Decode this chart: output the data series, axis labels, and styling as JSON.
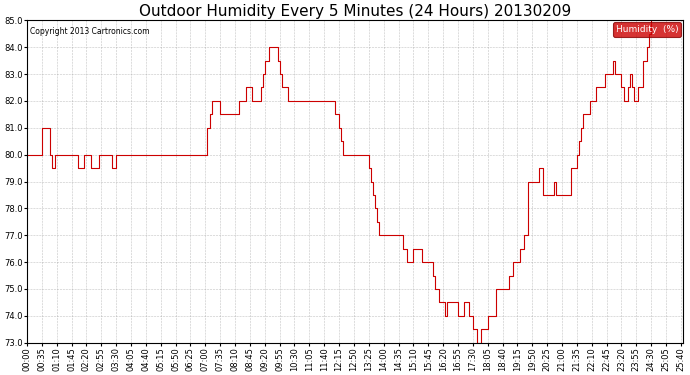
{
  "title": "Outdoor Humidity Every 5 Minutes (24 Hours) 20130209",
  "copyright": "Copyright 2013 Cartronics.com",
  "legend_label": "Humidity  (%)",
  "ylim": [
    73.0,
    85.0
  ],
  "yticks": [
    73.0,
    74.0,
    75.0,
    76.0,
    77.0,
    78.0,
    79.0,
    80.0,
    81.0,
    82.0,
    83.0,
    84.0,
    85.0
  ],
  "line_color": "#cc0000",
  "background_color": "#ffffff",
  "grid_color": "#999999",
  "title_fontsize": 11,
  "tick_fontsize": 6,
  "figsize": [
    6.9,
    3.75
  ],
  "dpi": 100,
  "humidity_data": [
    80.0,
    80.0,
    80.0,
    80.0,
    80.0,
    80.0,
    80.0,
    81.0,
    81.0,
    81.0,
    81.0,
    80.0,
    79.5,
    80.0,
    80.0,
    80.0,
    80.0,
    80.0,
    80.0,
    80.0,
    80.0,
    80.0,
    80.0,
    80.0,
    79.5,
    79.5,
    79.5,
    80.0,
    80.0,
    80.0,
    79.5,
    79.5,
    79.5,
    79.5,
    80.0,
    80.0,
    80.0,
    80.0,
    80.0,
    80.0,
    79.5,
    79.5,
    80.0,
    80.0,
    80.0,
    80.0,
    80.0,
    80.0,
    80.0,
    80.0,
    80.0,
    80.0,
    80.0,
    80.0,
    80.0,
    80.0,
    80.0,
    80.0,
    80.0,
    80.0,
    80.0,
    80.0,
    80.0,
    80.0,
    80.0,
    80.0,
    80.0,
    80.0,
    80.0,
    80.0,
    80.0,
    80.0,
    80.0,
    80.0,
    80.0,
    80.0,
    80.0,
    80.0,
    80.0,
    80.0,
    80.0,
    80.0,
    80.0,
    80.0,
    80.0,
    81.0,
    81.5,
    82.0,
    82.0,
    82.0,
    82.0,
    81.5,
    81.5,
    81.5,
    81.5,
    81.5,
    81.5,
    81.5,
    81.5,
    81.5,
    82.0,
    82.0,
    82.0,
    82.5,
    82.5,
    82.5,
    82.0,
    82.0,
    82.0,
    82.0,
    82.5,
    83.0,
    83.5,
    83.5,
    84.0,
    84.0,
    84.0,
    84.0,
    83.5,
    83.0,
    82.5,
    82.5,
    82.5,
    82.0,
    82.0,
    82.0,
    82.0,
    82.0,
    82.0,
    82.0,
    82.0,
    82.0,
    82.0,
    82.0,
    82.0,
    82.0,
    82.0,
    82.0,
    82.0,
    82.0,
    82.0,
    82.0,
    82.0,
    82.0,
    82.0,
    81.5,
    81.5,
    81.0,
    80.5,
    80.0,
    80.0,
    80.0,
    80.0,
    80.0,
    80.0,
    80.0,
    80.0,
    80.0,
    80.0,
    80.0,
    80.0,
    79.5,
    79.0,
    78.5,
    78.0,
    77.5,
    77.0,
    77.0,
    77.0,
    77.0,
    77.0,
    77.0,
    77.0,
    77.0,
    77.0,
    77.0,
    77.0,
    76.5,
    76.5,
    76.0,
    76.0,
    76.0,
    76.5,
    76.5,
    76.5,
    76.5,
    76.0,
    76.0,
    76.0,
    76.0,
    76.0,
    75.5,
    75.0,
    75.0,
    74.5,
    74.5,
    74.5,
    74.0,
    74.5,
    74.5,
    74.5,
    74.5,
    74.5,
    74.0,
    74.0,
    74.0,
    74.5,
    74.5,
    74.0,
    74.0,
    73.5,
    73.5,
    73.0,
    73.0,
    73.5,
    73.5,
    73.5,
    74.0,
    74.0,
    74.0,
    74.0,
    75.0,
    75.0,
    75.0,
    75.0,
    75.0,
    75.0,
    75.5,
    75.5,
    76.0,
    76.0,
    76.0,
    76.5,
    76.5,
    77.0,
    77.0,
    79.0,
    79.0,
    79.0,
    79.0,
    79.0,
    79.5,
    79.5,
    78.5,
    78.5,
    78.5,
    78.5,
    78.5,
    79.0,
    78.5,
    78.5,
    78.5,
    78.5,
    78.5,
    78.5,
    78.5,
    79.5,
    79.5,
    79.5,
    80.0,
    80.5,
    81.0,
    81.5,
    81.5,
    81.5,
    82.0,
    82.0,
    82.0,
    82.5,
    82.5,
    82.5,
    82.5,
    83.0,
    83.0,
    83.0,
    83.0,
    83.5,
    83.0,
    83.0,
    83.0,
    82.5,
    82.0,
    82.0,
    82.5,
    83.0,
    82.5,
    82.0,
    82.0,
    82.5,
    82.5,
    83.5,
    83.5,
    84.0,
    84.5,
    85.0,
    85.0,
    85.0,
    85.0,
    85.0,
    85.0,
    85.0,
    85.0,
    85.0,
    85.0,
    85.0,
    85.0,
    85.0,
    85.0,
    85.0,
    85.0
  ],
  "xtick_step": 7
}
